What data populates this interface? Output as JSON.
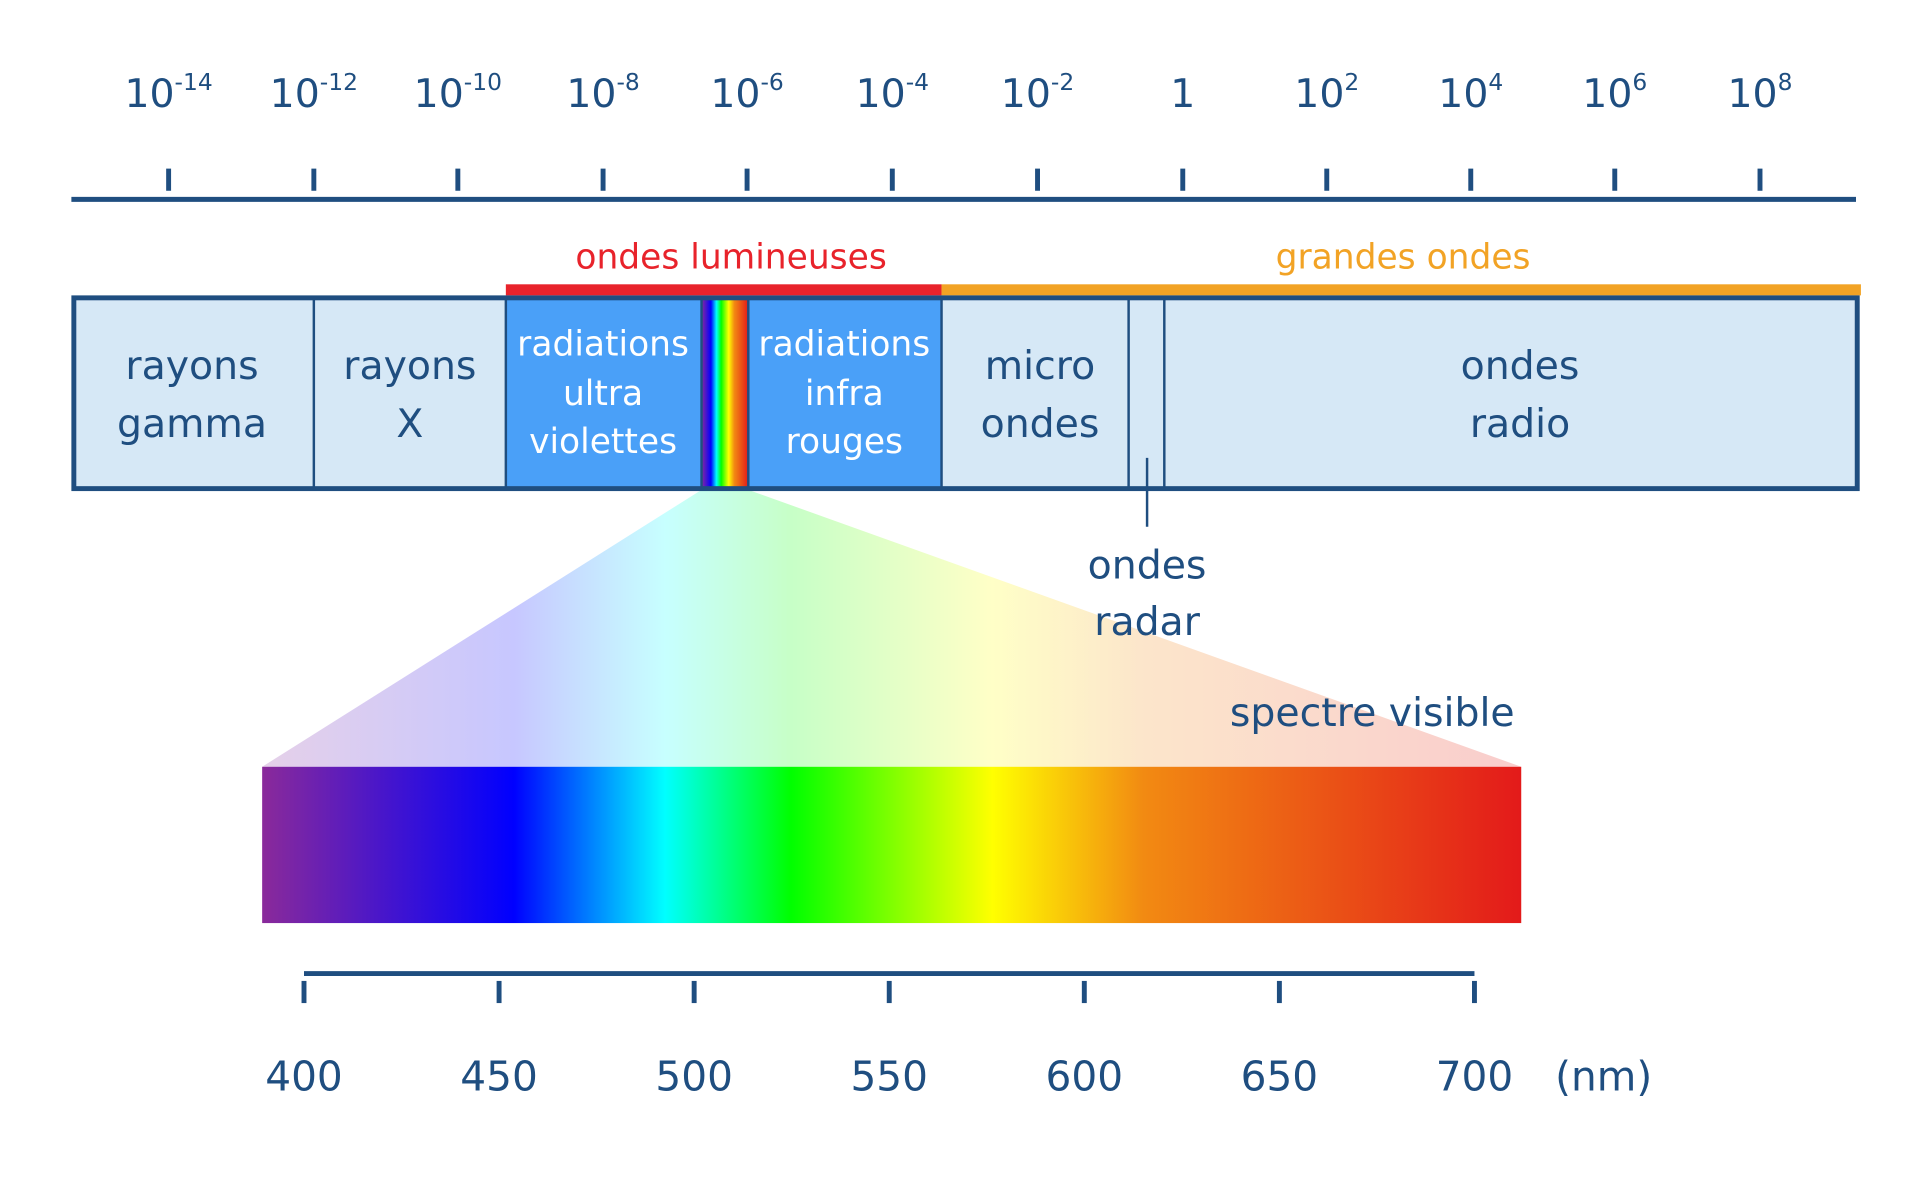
{
  "wavelength_scale": {
    "ticks": [
      {
        "base": "10",
        "exp": "-14"
      },
      {
        "base": "10",
        "exp": "-12"
      },
      {
        "base": "10",
        "exp": "-10"
      },
      {
        "base": "10",
        "exp": "-8"
      },
      {
        "base": "10",
        "exp": "-6"
      },
      {
        "base": "10",
        "exp": "-4"
      },
      {
        "base": "10",
        "exp": "-2"
      },
      {
        "base": "1"
      },
      {
        "base": "10",
        "exp": "2"
      },
      {
        "base": "10",
        "exp": "4"
      },
      {
        "base": "10",
        "exp": "6"
      },
      {
        "base": "10",
        "exp": "8"
      }
    ]
  },
  "groups": {
    "light_waves": "ondes lumineuses",
    "long_waves": "grandes ondes"
  },
  "bands": [
    {
      "lines": [
        "rayons",
        "gamma"
      ]
    },
    {
      "lines": [
        "rayons",
        "X"
      ]
    },
    {
      "lines": [
        "radiations",
        "ultra",
        "violettes"
      ]
    },
    {
      "lines": [
        "radiations",
        "infra",
        "rouges"
      ]
    },
    {
      "lines": [
        "micro",
        "ondes"
      ]
    },
    {
      "lines": [
        "ondes",
        "radio"
      ]
    }
  ],
  "radar_label": [
    "ondes",
    "radar"
  ],
  "visible": {
    "label": "spectre visible",
    "ticks": [
      400,
      450,
      500,
      550,
      600,
      650,
      700
    ],
    "unit": "(nm)"
  }
}
